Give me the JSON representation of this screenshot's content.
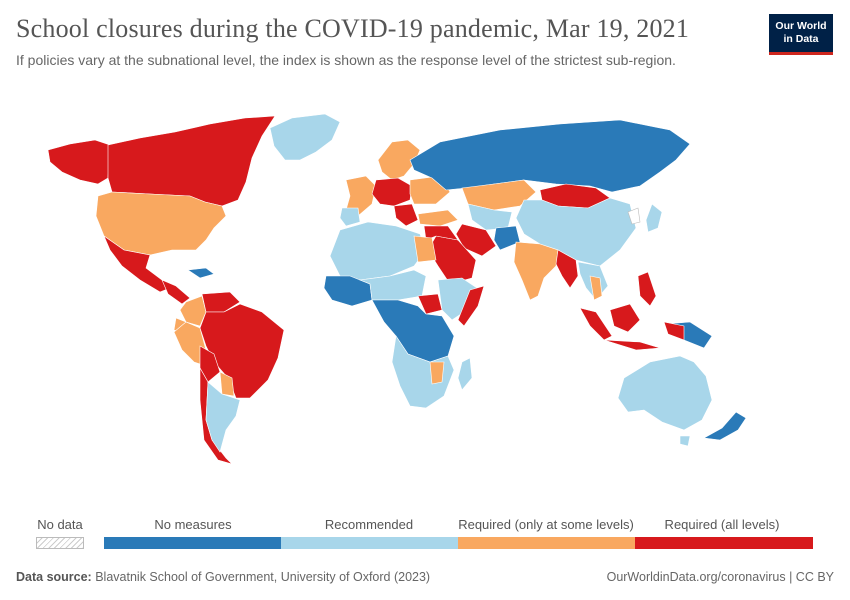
{
  "header": {
    "title": "School closures during the COVID-19 pandemic, Mar 19, 2021",
    "subtitle": "If policies vary at the subnational level, the index is shown as the response level of the strictest sub-region."
  },
  "logo": {
    "line1": "Our World",
    "line2": "in Data"
  },
  "legend": {
    "no_data": "No data",
    "items": [
      {
        "label": "No measures",
        "color": "#2a7ab8"
      },
      {
        "label": "Recommended",
        "color": "#a8d6ea"
      },
      {
        "label": "Required (only at some levels)",
        "color": "#f9a860"
      },
      {
        "label": "Required (all levels)",
        "color": "#d7191c"
      }
    ]
  },
  "map": {
    "regions": [
      {
        "name": "Canada",
        "level": "Required (all levels)"
      },
      {
        "name": "Alaska",
        "level": "Required (all levels)"
      },
      {
        "name": "United States",
        "level": "Required (only at some levels)"
      },
      {
        "name": "Mexico",
        "level": "Required (all levels)"
      },
      {
        "name": "Central America",
        "level": "Required (all levels)"
      },
      {
        "name": "Greenland",
        "level": "Recommended"
      },
      {
        "name": "Venezuela",
        "level": "Required (all levels)"
      },
      {
        "name": "Colombia",
        "level": "Required (only at some levels)"
      },
      {
        "name": "Ecuador",
        "level": "Required (only at some levels)"
      },
      {
        "name": "Peru",
        "level": "Required (only at some levels)"
      },
      {
        "name": "Brazil",
        "level": "Required (all levels)"
      },
      {
        "name": "Bolivia",
        "level": "Required (all levels)"
      },
      {
        "name": "Paraguay",
        "level": "Required (only at some levels)"
      },
      {
        "name": "Chile",
        "level": "Required (all levels)"
      },
      {
        "name": "Argentina",
        "level": "Recommended"
      },
      {
        "name": "Russia",
        "level": "No measures"
      },
      {
        "name": "Europe West",
        "level": "Required (only at some levels)"
      },
      {
        "name": "Central Europe",
        "level": "Required (all levels)"
      },
      {
        "name": "Kazakhstan",
        "level": "Required (only at some levels)"
      },
      {
        "name": "Mongolia",
        "level": "Required (all levels)"
      },
      {
        "name": "China",
        "level": "Recommended"
      },
      {
        "name": "India",
        "level": "Required (only at some levels)"
      },
      {
        "name": "Myanmar",
        "level": "Required (all levels)"
      },
      {
        "name": "Iran",
        "level": "Required (all levels)"
      },
      {
        "name": "Saudi Arabia",
        "level": "Required (all levels)"
      },
      {
        "name": "Afghanistan",
        "level": "No measures"
      },
      {
        "name": "North Africa",
        "level": "Recommended"
      },
      {
        "name": "Egypt",
        "level": "Required (only at some levels)"
      },
      {
        "name": "Central Africa",
        "level": "No measures"
      },
      {
        "name": "South Sudan",
        "level": "Required (all levels)"
      },
      {
        "name": "Southern Africa",
        "level": "Recommended"
      },
      {
        "name": "Indonesia",
        "level": "Required (all levels)"
      },
      {
        "name": "Philippines",
        "level": "Required (all levels)"
      },
      {
        "name": "Australia",
        "level": "Recommended"
      },
      {
        "name": "New Zealand",
        "level": "No measures"
      },
      {
        "name": "Papua New Guinea",
        "level": "No measures"
      }
    ]
  },
  "footer": {
    "source_label": "Data source:",
    "source_text": "Blavatnik School of Government, University of Oxford (2023)",
    "credit": "OurWorldinData.org/coronavirus | CC BY"
  }
}
